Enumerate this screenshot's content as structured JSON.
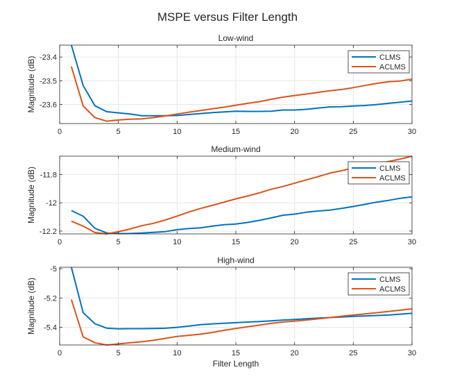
{
  "figure": {
    "title": "MSPE versus Filter Length",
    "xlabel": "Filter Length"
  },
  "colors": {
    "CLMS": "#0072BD",
    "ACLMS": "#D95319",
    "grid": "#e6e6e6",
    "axis": "#262626"
  },
  "chart_data": [
    {
      "type": "line",
      "title": "Low-wind",
      "xlabel": "",
      "ylabel": "Magnitude (dB)",
      "xlim": [
        0,
        30
      ],
      "ylim": [
        -23.68,
        -23.35
      ],
      "xticks": [
        0,
        5,
        10,
        15,
        20,
        25,
        30
      ],
      "yticks": [
        -23.6,
        -23.5,
        -23.4
      ],
      "grid": true,
      "legend_position": "top-right",
      "x": [
        1,
        2,
        3,
        4,
        5,
        6,
        7,
        8,
        9,
        10,
        11,
        12,
        13,
        14,
        15,
        16,
        17,
        18,
        19,
        20,
        21,
        22,
        23,
        24,
        25,
        26,
        27,
        28,
        29,
        30
      ],
      "series": [
        {
          "name": "CLMS",
          "values": [
            -23.35,
            -23.52,
            -23.605,
            -23.63,
            -23.635,
            -23.64,
            -23.647,
            -23.647,
            -23.647,
            -23.646,
            -23.642,
            -23.638,
            -23.634,
            -23.631,
            -23.628,
            -23.629,
            -23.629,
            -23.628,
            -23.623,
            -23.623,
            -23.62,
            -23.615,
            -23.61,
            -23.609,
            -23.606,
            -23.604,
            -23.6,
            -23.595,
            -23.59,
            -23.585
          ]
        },
        {
          "name": "ACLMS",
          "values": [
            -23.44,
            -23.606,
            -23.655,
            -23.67,
            -23.665,
            -23.662,
            -23.66,
            -23.655,
            -23.648,
            -23.64,
            -23.632,
            -23.625,
            -23.618,
            -23.611,
            -23.603,
            -23.595,
            -23.588,
            -23.578,
            -23.569,
            -23.562,
            -23.556,
            -23.549,
            -23.542,
            -23.537,
            -23.529,
            -23.52,
            -23.511,
            -23.504,
            -23.501,
            -23.493
          ]
        }
      ]
    },
    {
      "type": "line",
      "title": "Medium-wind",
      "xlabel": "",
      "ylabel": "Magnitude (dB)",
      "xlim": [
        0,
        30
      ],
      "ylim": [
        -12.22,
        -11.67
      ],
      "xticks": [
        0,
        5,
        10,
        15,
        20,
        25,
        30
      ],
      "yticks": [
        -12.2,
        -12,
        -11.8
      ],
      "grid": true,
      "legend_position": "top-right",
      "x": [
        1,
        2,
        3,
        4,
        5,
        6,
        7,
        8,
        9,
        10,
        11,
        12,
        13,
        14,
        15,
        16,
        17,
        18,
        19,
        20,
        21,
        22,
        23,
        24,
        25,
        26,
        27,
        28,
        29,
        30
      ],
      "series": [
        {
          "name": "CLMS",
          "values": [
            -12.055,
            -12.095,
            -12.18,
            -12.213,
            -12.218,
            -12.217,
            -12.214,
            -12.209,
            -12.204,
            -12.19,
            -12.182,
            -12.177,
            -12.165,
            -12.155,
            -12.15,
            -12.139,
            -12.124,
            -12.107,
            -12.088,
            -12.08,
            -12.067,
            -12.058,
            -12.052,
            -12.04,
            -12.026,
            -12.011,
            -11.995,
            -11.983,
            -11.968,
            -11.958
          ]
        },
        {
          "name": "ACLMS",
          "values": [
            -12.13,
            -12.165,
            -12.21,
            -12.22,
            -12.205,
            -12.185,
            -12.162,
            -12.145,
            -12.122,
            -12.094,
            -12.065,
            -12.04,
            -12.018,
            -11.995,
            -11.972,
            -11.952,
            -11.93,
            -11.904,
            -11.885,
            -11.861,
            -11.838,
            -11.815,
            -11.79,
            -11.773,
            -11.753,
            -11.73,
            -11.721,
            -11.708,
            -11.69,
            -11.67
          ]
        }
      ]
    },
    {
      "type": "line",
      "title": "High-wind",
      "xlabel": "Filter Length",
      "ylabel": "Magnitude (dB)",
      "xlim": [
        0,
        30
      ],
      "ylim": [
        -5.52,
        -4.99
      ],
      "xticks": [
        0,
        5,
        10,
        15,
        20,
        25,
        30
      ],
      "yticks": [
        -5.4,
        -5.2,
        -5
      ],
      "grid": true,
      "legend_position": "top-right",
      "x": [
        1,
        2,
        3,
        4,
        5,
        6,
        7,
        8,
        9,
        10,
        11,
        12,
        13,
        14,
        15,
        16,
        17,
        18,
        19,
        20,
        21,
        22,
        23,
        24,
        25,
        26,
        27,
        28,
        29,
        30
      ],
      "series": [
        {
          "name": "CLMS",
          "values": [
            -4.99,
            -5.3,
            -5.375,
            -5.405,
            -5.41,
            -5.409,
            -5.409,
            -5.408,
            -5.406,
            -5.4,
            -5.391,
            -5.382,
            -5.376,
            -5.372,
            -5.368,
            -5.364,
            -5.36,
            -5.356,
            -5.35,
            -5.346,
            -5.341,
            -5.337,
            -5.333,
            -5.33,
            -5.325,
            -5.322,
            -5.319,
            -5.316,
            -5.31,
            -5.304
          ]
        },
        {
          "name": "ACLMS",
          "values": [
            -5.21,
            -5.465,
            -5.505,
            -5.52,
            -5.513,
            -5.505,
            -5.498,
            -5.488,
            -5.475,
            -5.462,
            -5.454,
            -5.446,
            -5.435,
            -5.42,
            -5.408,
            -5.396,
            -5.385,
            -5.373,
            -5.364,
            -5.357,
            -5.35,
            -5.342,
            -5.333,
            -5.324,
            -5.316,
            -5.308,
            -5.3,
            -5.292,
            -5.283,
            -5.274
          ]
        }
      ]
    }
  ]
}
